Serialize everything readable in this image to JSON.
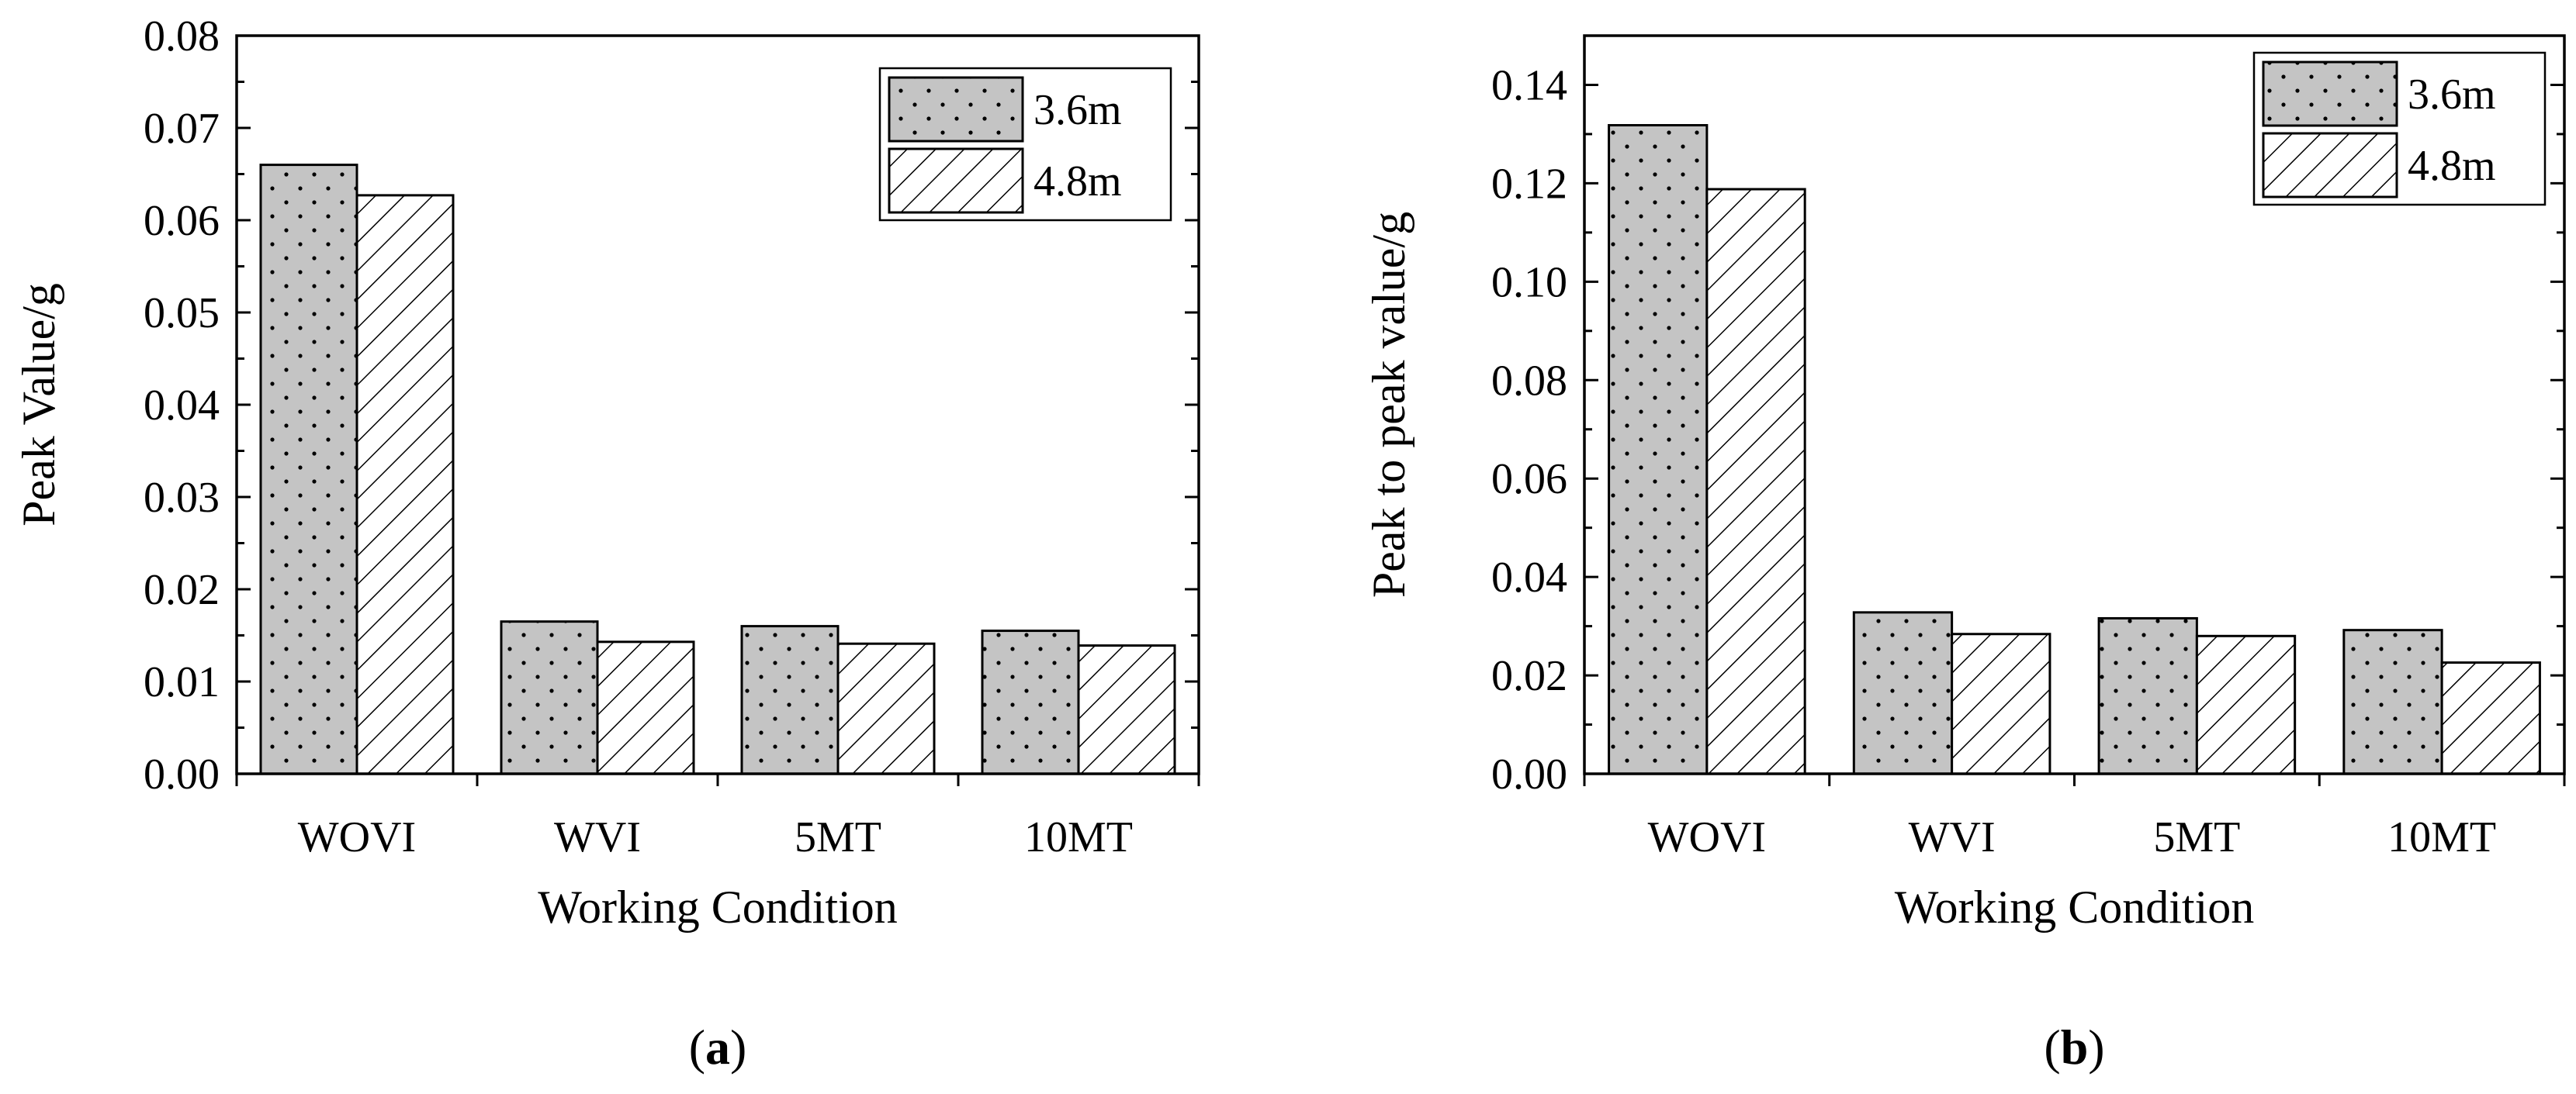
{
  "chart_data": [
    {
      "panel_label": "a",
      "type": "bar",
      "categories": [
        "WOVI",
        "WVI",
        "5MT",
        "10MT"
      ],
      "series": [
        {
          "name": "3.6m",
          "values": [
            0.066,
            0.0165,
            0.016,
            0.0155
          ]
        },
        {
          "name": "4.8m",
          "values": [
            0.0627,
            0.0143,
            0.0141,
            0.0139
          ]
        }
      ],
      "xlabel": "Working Condition",
      "ylabel": "Peak Value/g",
      "ylim": [
        0,
        0.08
      ],
      "yticks": [
        "0.00",
        "0.01",
        "0.02",
        "0.03",
        "0.04",
        "0.05",
        "0.06",
        "0.07",
        "0.08"
      ],
      "legend_position": "top-right"
    },
    {
      "panel_label": "b",
      "type": "bar",
      "categories": [
        "WOVI",
        "WVI",
        "5MT",
        "10MT"
      ],
      "series": [
        {
          "name": "3.6m",
          "values": [
            0.1318,
            0.0328,
            0.0316,
            0.0292
          ]
        },
        {
          "name": "4.8m",
          "values": [
            0.1188,
            0.0284,
            0.028,
            0.0226
          ]
        }
      ],
      "xlabel": "Working Condition",
      "ylabel": "Peak to peak value/g",
      "ylim": [
        0,
        0.15
      ],
      "yticks": [
        "0.00",
        "0.02",
        "0.04",
        "0.06",
        "0.08",
        "0.10",
        "0.12",
        "0.14"
      ],
      "legend_position": "top-right"
    }
  ]
}
